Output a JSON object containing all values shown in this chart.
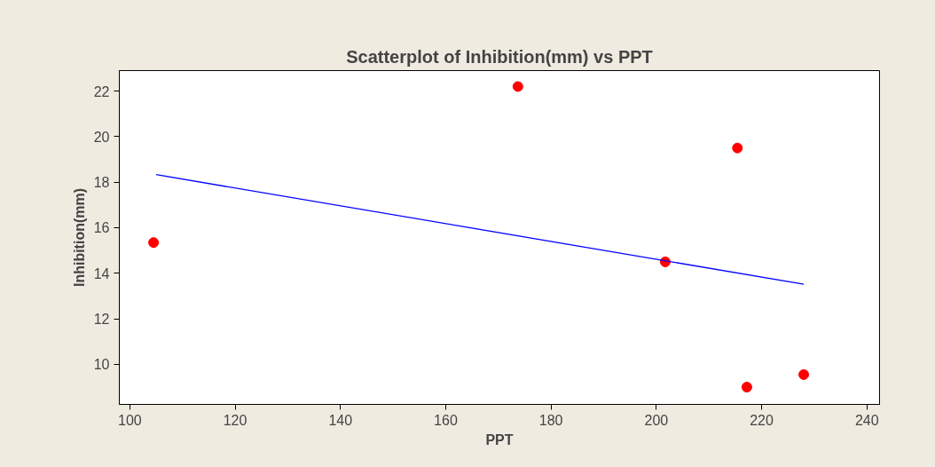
{
  "chart_data": {
    "type": "scatter",
    "title": "Scatterplot of Inhibition(mm) vs PPT",
    "xlabel": "PPT",
    "ylabel": "Inhibition(mm)",
    "series": [
      {
        "color": "#ff0000",
        "marker": "circle",
        "x": [
          104.5,
          173.7,
          201.7,
          215.4,
          217.2,
          228.0
        ],
        "values": [
          15.35,
          22.2,
          14.5,
          19.5,
          9.0,
          9.55
        ]
      },
      {
        "type": "line",
        "color": "#0000ff",
        "x": [
          105,
          228
        ],
        "values": [
          18.33,
          13.52
        ]
      }
    ],
    "xlim": [
      98,
      242.4
    ],
    "ylim": [
      8.24,
      22.9
    ],
    "xticks": [
      100,
      120,
      140,
      160,
      180,
      200,
      220,
      240
    ],
    "yticks": [
      10,
      12,
      14,
      16,
      18,
      20,
      22
    ],
    "grid": false
  }
}
